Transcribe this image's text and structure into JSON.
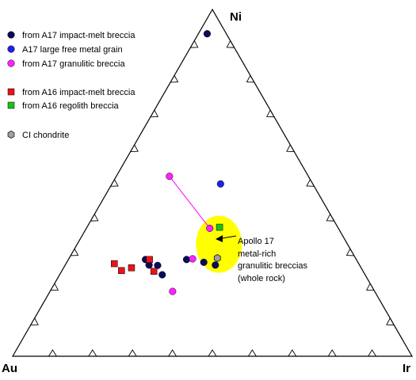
{
  "chart_data": {
    "type": "scatter",
    "subtype": "ternary",
    "vertices": {
      "top": "Ni",
      "left": "Au",
      "right": "Ir"
    },
    "axis_note": "ternary coordinates given as fractions [Ni, Au, Ir]; tick marks every 0.1 along each edge, no numeric tick labels",
    "legend": {
      "placement": "top-left",
      "items": [
        {
          "label": "from A17 impact-melt breccia",
          "marker": "circle",
          "color": "#0b0b5a"
        },
        {
          "label": "A17 large free metal grain",
          "marker": "circle",
          "color": "#1e22e6"
        },
        {
          "label": "from A17 granulitic breccia",
          "marker": "circle",
          "color": "#ff22ff"
        },
        {
          "label": "from A16 impact-melt breccia",
          "marker": "square",
          "color": "#e8141b"
        },
        {
          "label": "from A16 regolith breccia",
          "marker": "square",
          "color": "#19c219"
        },
        {
          "label": "CI chondrite",
          "marker": "hexagon",
          "color": "#a0a0a0"
        }
      ]
    },
    "series": [
      {
        "name": "from A17 impact-melt breccia",
        "points": [
          {
            "ni": 0.93,
            "au": 0.048,
            "ir": 0.022
          },
          {
            "ni": 0.279,
            "au": 0.528,
            "ir": 0.193
          },
          {
            "ni": 0.263,
            "au": 0.527,
            "ir": 0.21
          },
          {
            "ni": 0.262,
            "au": 0.506,
            "ir": 0.232
          },
          {
            "ni": 0.235,
            "au": 0.508,
            "ir": 0.257
          },
          {
            "ni": 0.279,
            "au": 0.425,
            "ir": 0.296
          },
          {
            "ni": 0.271,
            "au": 0.386,
            "ir": 0.343
          },
          {
            "ni": 0.263,
            "au": 0.361,
            "ir": 0.376
          }
        ]
      },
      {
        "name": "A17 large free metal grain",
        "points": [
          {
            "ni": 0.497,
            "au": 0.231,
            "ir": 0.272
          }
        ]
      },
      {
        "name": "from A17 granulitic breccia",
        "points": [
          {
            "ni": 0.519,
            "au": 0.348,
            "ir": 0.133
          },
          {
            "ni": 0.369,
            "au": 0.322,
            "ir": 0.309
          },
          {
            "ni": 0.281,
            "au": 0.409,
            "ir": 0.31
          },
          {
            "ni": 0.187,
            "au": 0.506,
            "ir": 0.307
          }
        ]
      },
      {
        "name": "from A16 impact-melt breccia",
        "points": [
          {
            "ni": 0.267,
            "au": 0.612,
            "ir": 0.121
          },
          {
            "ni": 0.247,
            "au": 0.604,
            "ir": 0.149
          },
          {
            "ni": 0.279,
            "au": 0.518,
            "ir": 0.203
          },
          {
            "ni": 0.245,
            "au": 0.524,
            "ir": 0.231
          },
          {
            "ni": 0.255,
            "au": 0.575,
            "ir": 0.17
          }
        ]
      },
      {
        "name": "from A16 regolith breccia",
        "points": [
          {
            "ni": 0.372,
            "au": 0.296,
            "ir": 0.332
          }
        ]
      },
      {
        "name": "CI chondrite",
        "points": [
          {
            "ni": 0.283,
            "au": 0.346,
            "ir": 0.371
          }
        ]
      }
    ],
    "tie_line": {
      "series": "from A17 granulitic breccia",
      "from": {
        "ni": 0.519,
        "au": 0.348,
        "ir": 0.133
      },
      "to": {
        "ni": 0.369,
        "au": 0.322,
        "ir": 0.309
      }
    },
    "field": {
      "label_lines": [
        "Apollo 17",
        "metal-rich",
        "granulitic breccias",
        "(whole rock)"
      ],
      "color": "#ffff00",
      "center": {
        "ni": 0.323,
        "au": 0.322,
        "ir": 0.355
      }
    }
  }
}
